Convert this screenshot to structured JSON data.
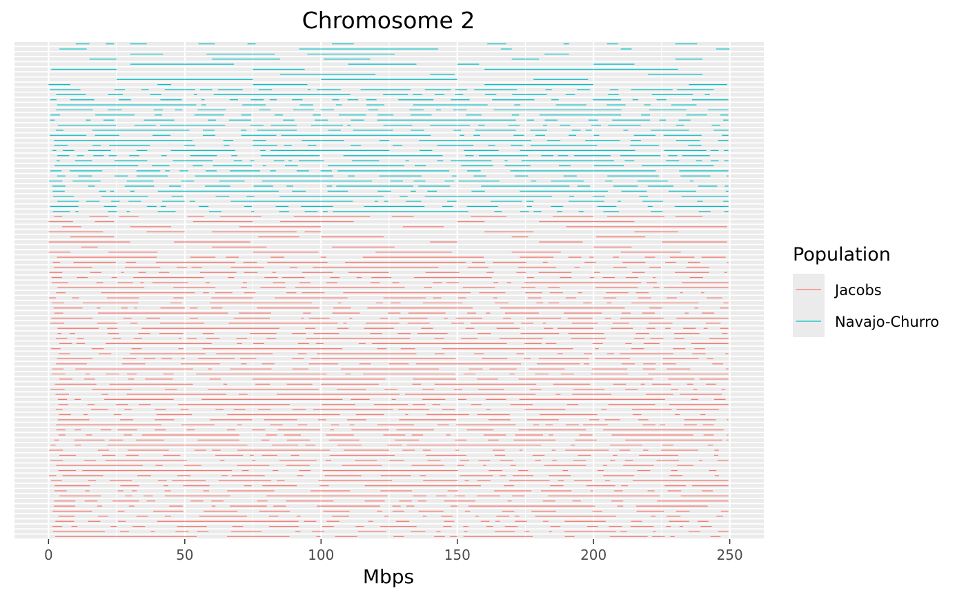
{
  "chart_data": {
    "type": "segment",
    "title": "Chromosome  2",
    "xlabel": "Mbps",
    "ylabel": "",
    "xlim": [
      -12.5,
      262.5
    ],
    "x_ticks": [
      0,
      50,
      100,
      150,
      200,
      250
    ],
    "y_axis": "individual haplotype rows (no tick labels)",
    "grid": true,
    "legend": {
      "title": "Population",
      "placement": "right",
      "entries": [
        {
          "name": "Jacobs",
          "color": "#F8766D"
        },
        {
          "name": "Navajo-Churro",
          "color": "#00BFC4"
        }
      ]
    },
    "series": [
      {
        "name": "Jacobs",
        "color": "#F8766D",
        "track_count": 64,
        "sample_segments_mbp": [
          [
            [
              2,
              5
            ],
            [
              15,
              22
            ],
            [
              26,
              33
            ],
            [
              51,
              57
            ],
            [
              63,
              78
            ],
            [
              90,
              118
            ],
            [
              126,
              134
            ],
            [
              155,
              168
            ],
            [
              185,
              200
            ],
            [
              205,
              226
            ],
            [
              230,
              240
            ]
          ],
          [
            [
              0,
              9
            ],
            [
              17,
              24
            ],
            [
              53,
              75
            ],
            [
              85,
              112
            ],
            [
              150,
              160
            ],
            [
              180,
              215
            ]
          ],
          [
            [
              5,
              12
            ],
            [
              30,
              45
            ],
            [
              70,
              100
            ],
            [
              130,
              145
            ],
            [
              190,
              249
            ]
          ],
          [
            [
              0,
              20
            ],
            [
              36,
              50
            ],
            [
              60,
              91
            ],
            [
              94,
              100
            ],
            [
              160,
              178
            ],
            [
              215,
              231
            ]
          ],
          [
            [
              8,
              24
            ],
            [
              77,
              92
            ],
            [
              100,
              123
            ],
            [
              170,
              176
            ],
            [
              201,
              219
            ]
          ],
          [
            [
              0,
              30
            ],
            [
              46,
              74
            ],
            [
              140,
              150
            ],
            [
              180,
              196
            ],
            [
              225,
              249
            ]
          ],
          [
            [
              12,
              18
            ],
            [
              60,
              80
            ],
            [
              104,
              127
            ],
            [
              200,
              214
            ]
          ],
          [
            [
              0,
              8
            ],
            [
              22,
              40
            ],
            [
              75,
              99
            ],
            [
              120,
              148
            ],
            [
              170,
              188
            ],
            [
              210,
              232
            ]
          ]
        ]
      },
      {
        "name": "Navajo-Churro",
        "color": "#00BFC4",
        "track_count": 34,
        "sample_segments_mbp": [
          [
            [
              10,
              15
            ],
            [
              21,
              24
            ],
            [
              30,
              36
            ],
            [
              55,
              61
            ],
            [
              73,
              76
            ],
            [
              104,
              112
            ],
            [
              161,
              168
            ],
            [
              189,
              191
            ],
            [
              205,
              209
            ],
            [
              230,
              238
            ]
          ],
          [
            [
              4,
              14
            ],
            [
              92,
              143
            ],
            [
              166,
              170
            ],
            [
              210,
              214
            ],
            [
              245,
              250
            ]
          ],
          [
            [
              30,
              42
            ],
            [
              58,
              83
            ],
            [
              95,
              127
            ],
            [
              182,
              191
            ]
          ],
          [
            [
              15,
              25
            ],
            [
              60,
              85
            ],
            [
              101,
              118
            ],
            [
              170,
              180
            ],
            [
              230,
              240
            ]
          ],
          [
            [
              30,
              68
            ],
            [
              110,
              135
            ],
            [
              150,
              158
            ],
            [
              200,
              215
            ]
          ],
          [
            [
              1,
              25
            ],
            [
              75,
              94
            ],
            [
              160,
              231
            ]
          ],
          [
            [
              85,
              120
            ],
            [
              140,
              149
            ],
            [
              220,
              240
            ]
          ],
          [
            [
              25,
              75
            ],
            [
              100,
              150
            ],
            [
              178,
              198
            ]
          ],
          [
            [
              0,
              8
            ],
            [
              40,
              45
            ],
            [
              75,
              95
            ],
            [
              160,
              200
            ],
            [
              235,
              249
            ]
          ]
        ]
      }
    ]
  }
}
